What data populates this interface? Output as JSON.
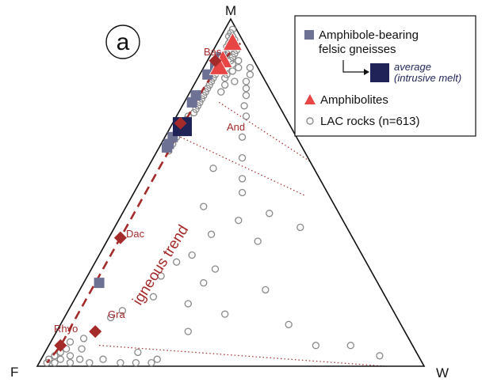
{
  "chart_data": {
    "type": "ternary",
    "panel_label": "a",
    "vertices": {
      "top": "M",
      "left": "F",
      "right": "W"
    },
    "colors": {
      "lac": "#8a8a8a",
      "gneiss": "#6d7193",
      "average": "#1f2357",
      "amphibolite": "#e84545",
      "reference": "#a52a2a",
      "trend": "#a52a2a"
    },
    "trend_label": "igneous trend",
    "reference_points": [
      {
        "label": "Bas",
        "M": 0.88,
        "F": 0.1,
        "W": 0.02
      },
      {
        "label": "And",
        "M": 0.7,
        "F": 0.28,
        "W": 0.02
      },
      {
        "label": "Dac",
        "M": 0.37,
        "F": 0.6,
        "W": 0.03
      },
      {
        "label": "Gra",
        "M": 0.1,
        "F": 0.8,
        "W": 0.1
      },
      {
        "label": "Rhyo",
        "M": 0.06,
        "F": 0.91,
        "W": 0.03
      }
    ],
    "trend_curve": [
      {
        "M": 0.93,
        "F": 0.01,
        "W": 0.06
      },
      {
        "M": 0.88,
        "F": 0.08,
        "W": 0.04
      },
      {
        "M": 0.8,
        "F": 0.17,
        "W": 0.03
      },
      {
        "M": 0.72,
        "F": 0.25,
        "W": 0.03
      },
      {
        "M": 0.61,
        "F": 0.36,
        "W": 0.03
      },
      {
        "M": 0.48,
        "F": 0.49,
        "W": 0.03
      },
      {
        "M": 0.35,
        "F": 0.62,
        "W": 0.03
      },
      {
        "M": 0.23,
        "F": 0.74,
        "W": 0.03
      },
      {
        "M": 0.13,
        "F": 0.84,
        "W": 0.03
      },
      {
        "M": 0.06,
        "F": 0.91,
        "W": 0.03
      },
      {
        "M": 0.01,
        "F": 0.97,
        "W": 0.02
      }
    ],
    "weathering_lines": [
      [
        {
          "M": 0.93,
          "F": 0.0,
          "W": 0.07
        },
        {
          "M": 0.71,
          "F": 0.0,
          "W": 0.29
        }
      ],
      [
        {
          "M": 0.76,
          "F": 0.15,
          "W": 0.09
        },
        {
          "M": 0.59,
          "F": 0.0,
          "W": 0.41
        }
      ],
      [
        {
          "M": 0.66,
          "F": 0.3,
          "W": 0.04
        },
        {
          "M": 0.49,
          "F": 0.06,
          "W": 0.45
        }
      ],
      [
        {
          "M": 0.06,
          "F": 0.81,
          "W": 0.13
        },
        {
          "M": 0.0,
          "F": 0.1,
          "W": 0.9
        }
      ]
    ],
    "amphibolites": [
      {
        "M": 0.93,
        "F": 0.03,
        "W": 0.04
      },
      {
        "M": 0.88,
        "F": 0.08,
        "W": 0.04
      },
      {
        "M": 0.86,
        "F": 0.1,
        "W": 0.04
      }
    ],
    "gneisses": [
      {
        "M": 0.89,
        "F": 0.08,
        "W": 0.03
      },
      {
        "M": 0.86,
        "F": 0.11,
        "W": 0.03
      },
      {
        "M": 0.84,
        "F": 0.14,
        "W": 0.02
      },
      {
        "M": 0.78,
        "F": 0.2,
        "W": 0.02
      },
      {
        "M": 0.76,
        "F": 0.22,
        "W": 0.02
      },
      {
        "M": 0.7,
        "F": 0.28,
        "W": 0.02
      },
      {
        "M": 0.66,
        "F": 0.32,
        "W": 0.02
      },
      {
        "M": 0.64,
        "F": 0.34,
        "W": 0.02
      },
      {
        "M": 0.63,
        "F": 0.35,
        "W": 0.02
      },
      {
        "M": 0.24,
        "F": 0.72,
        "W": 0.04
      }
    ],
    "average": [
      {
        "M": 0.69,
        "F": 0.28,
        "W": 0.03
      }
    ],
    "lac_rocks": [
      {
        "M": 0.97,
        "F": 0.01,
        "W": 0.02
      },
      {
        "M": 0.96,
        "F": 0.02,
        "W": 0.02
      },
      {
        "M": 0.95,
        "F": 0.02,
        "W": 0.03
      },
      {
        "M": 0.95,
        "F": 0.03,
        "W": 0.02
      },
      {
        "M": 0.94,
        "F": 0.03,
        "W": 0.03
      },
      {
        "M": 0.94,
        "F": 0.02,
        "W": 0.04
      },
      {
        "M": 0.93,
        "F": 0.04,
        "W": 0.03
      },
      {
        "M": 0.93,
        "F": 0.03,
        "W": 0.04
      },
      {
        "M": 0.92,
        "F": 0.05,
        "W": 0.03
      },
      {
        "M": 0.92,
        "F": 0.04,
        "W": 0.04
      },
      {
        "M": 0.91,
        "F": 0.05,
        "W": 0.04
      },
      {
        "M": 0.91,
        "F": 0.03,
        "W": 0.06
      },
      {
        "M": 0.9,
        "F": 0.06,
        "W": 0.04
      },
      {
        "M": 0.9,
        "F": 0.04,
        "W": 0.06
      },
      {
        "M": 0.89,
        "F": 0.07,
        "W": 0.04
      },
      {
        "M": 0.89,
        "F": 0.05,
        "W": 0.06
      },
      {
        "M": 0.88,
        "F": 0.06,
        "W": 0.06
      },
      {
        "M": 0.88,
        "F": 0.04,
        "W": 0.08
      },
      {
        "M": 0.87,
        "F": 0.09,
        "W": 0.04
      },
      {
        "M": 0.87,
        "F": 0.06,
        "W": 0.07
      },
      {
        "M": 0.86,
        "F": 0.08,
        "W": 0.06
      },
      {
        "M": 0.86,
        "F": 0.05,
        "W": 0.09
      },
      {
        "M": 0.85,
        "F": 0.1,
        "W": 0.05
      },
      {
        "M": 0.85,
        "F": 0.07,
        "W": 0.08
      },
      {
        "M": 0.84,
        "F": 0.12,
        "W": 0.04
      },
      {
        "M": 0.84,
        "F": 0.09,
        "W": 0.07
      },
      {
        "M": 0.83,
        "F": 0.13,
        "W": 0.04
      },
      {
        "M": 0.83,
        "F": 0.1,
        "W": 0.07
      },
      {
        "M": 0.82,
        "F": 0.14,
        "W": 0.04
      },
      {
        "M": 0.82,
        "F": 0.08,
        "W": 0.1
      },
      {
        "M": 0.81,
        "F": 0.15,
        "W": 0.04
      },
      {
        "M": 0.81,
        "F": 0.11,
        "W": 0.08
      },
      {
        "M": 0.8,
        "F": 0.16,
        "W": 0.04
      },
      {
        "M": 0.79,
        "F": 0.17,
        "W": 0.04
      },
      {
        "M": 0.79,
        "F": 0.13,
        "W": 0.08
      },
      {
        "M": 0.78,
        "F": 0.18,
        "W": 0.04
      },
      {
        "M": 0.77,
        "F": 0.19,
        "W": 0.04
      },
      {
        "M": 0.76,
        "F": 0.2,
        "W": 0.04
      },
      {
        "M": 0.75,
        "F": 0.21,
        "W": 0.04
      },
      {
        "M": 0.74,
        "F": 0.22,
        "W": 0.04
      },
      {
        "M": 0.73,
        "F": 0.23,
        "W": 0.04
      },
      {
        "M": 0.72,
        "F": 0.25,
        "W": 0.03
      },
      {
        "M": 0.71,
        "F": 0.26,
        "W": 0.03
      },
      {
        "M": 0.7,
        "F": 0.27,
        "W": 0.03
      },
      {
        "M": 0.68,
        "F": 0.29,
        "W": 0.03
      },
      {
        "M": 0.66,
        "F": 0.31,
        "W": 0.03
      },
      {
        "M": 0.64,
        "F": 0.33,
        "W": 0.03
      },
      {
        "M": 0.62,
        "F": 0.35,
        "W": 0.03
      },
      {
        "M": 0.86,
        "F": 0.02,
        "W": 0.12
      },
      {
        "M": 0.84,
        "F": 0.03,
        "W": 0.13
      },
      {
        "M": 0.82,
        "F": 0.05,
        "W": 0.13
      },
      {
        "M": 0.8,
        "F": 0.06,
        "W": 0.14
      },
      {
        "M": 0.78,
        "F": 0.07,
        "W": 0.15
      },
      {
        "M": 0.75,
        "F": 0.09,
        "W": 0.16
      },
      {
        "M": 0.72,
        "F": 0.1,
        "W": 0.18
      },
      {
        "M": 0.66,
        "F": 0.14,
        "W": 0.2
      },
      {
        "M": 0.6,
        "F": 0.17,
        "W": 0.23
      },
      {
        "M": 0.57,
        "F": 0.26,
        "W": 0.17
      },
      {
        "M": 0.54,
        "F": 0.2,
        "W": 0.26
      },
      {
        "M": 0.5,
        "F": 0.22,
        "W": 0.28
      },
      {
        "M": 0.46,
        "F": 0.34,
        "W": 0.2
      },
      {
        "M": 0.44,
        "F": 0.18,
        "W": 0.38
      },
      {
        "M": 0.42,
        "F": 0.27,
        "W": 0.31
      },
      {
        "M": 0.4,
        "F": 0.12,
        "W": 0.48
      },
      {
        "M": 0.38,
        "F": 0.36,
        "W": 0.26
      },
      {
        "M": 0.36,
        "F": 0.25,
        "W": 0.39
      },
      {
        "M": 0.32,
        "F": 0.44,
        "W": 0.24
      },
      {
        "M": 0.3,
        "F": 0.49,
        "W": 0.21
      },
      {
        "M": 0.28,
        "F": 0.4,
        "W": 0.32
      },
      {
        "M": 0.26,
        "F": 0.55,
        "W": 0.19
      },
      {
        "M": 0.24,
        "F": 0.45,
        "W": 0.31
      },
      {
        "M": 0.22,
        "F": 0.3,
        "W": 0.48
      },
      {
        "M": 0.2,
        "F": 0.6,
        "W": 0.2
      },
      {
        "M": 0.18,
        "F": 0.52,
        "W": 0.3
      },
      {
        "M": 0.16,
        "F": 0.7,
        "W": 0.14
      },
      {
        "M": 0.15,
        "F": 0.44,
        "W": 0.41
      },
      {
        "M": 0.14,
        "F": 0.74,
        "W": 0.12
      },
      {
        "M": 0.12,
        "F": 0.29,
        "W": 0.59
      },
      {
        "M": 0.1,
        "F": 0.56,
        "W": 0.34
      },
      {
        "M": 0.1,
        "F": 0.8,
        "W": 0.1
      },
      {
        "M": 0.08,
        "F": 0.84,
        "W": 0.08
      },
      {
        "M": 0.06,
        "F": 0.25,
        "W": 0.69
      },
      {
        "M": 0.06,
        "F": 0.16,
        "W": 0.78
      },
      {
        "M": 0.07,
        "F": 0.88,
        "W": 0.05
      },
      {
        "M": 0.05,
        "F": 0.9,
        "W": 0.05
      },
      {
        "M": 0.05,
        "F": 0.86,
        "W": 0.09
      },
      {
        "M": 0.04,
        "F": 0.92,
        "W": 0.04
      },
      {
        "M": 0.04,
        "F": 0.72,
        "W": 0.24
      },
      {
        "M": 0.03,
        "F": 0.94,
        "W": 0.03
      },
      {
        "M": 0.03,
        "F": 0.9,
        "W": 0.07
      },
      {
        "M": 0.03,
        "F": 0.1,
        "W": 0.87
      },
      {
        "M": 0.02,
        "F": 0.96,
        "W": 0.02
      },
      {
        "M": 0.02,
        "F": 0.93,
        "W": 0.05
      },
      {
        "M": 0.02,
        "F": 0.88,
        "W": 0.1
      },
      {
        "M": 0.02,
        "F": 0.82,
        "W": 0.16
      },
      {
        "M": 0.02,
        "F": 0.68,
        "W": 0.3
      },
      {
        "M": 0.01,
        "F": 0.97,
        "W": 0.02
      },
      {
        "M": 0.01,
        "F": 0.95,
        "W": 0.04
      },
      {
        "M": 0.01,
        "F": 0.91,
        "W": 0.08
      },
      {
        "M": 0.01,
        "F": 0.86,
        "W": 0.13
      },
      {
        "M": 0.01,
        "F": 0.78,
        "W": 0.21
      },
      {
        "M": 0.01,
        "F": 0.74,
        "W": 0.25
      },
      {
        "M": 0.01,
        "F": 0.7,
        "W": 0.29
      }
    ]
  },
  "legend": {
    "gneiss_line1": "Amphibole-bearing",
    "gneiss_line2": "felsic gneisses",
    "avg_line1": "average",
    "avg_line2": "(intrusive melt)",
    "amphibolites": "Amphibolites",
    "lac": "LAC rocks (n=613)"
  }
}
